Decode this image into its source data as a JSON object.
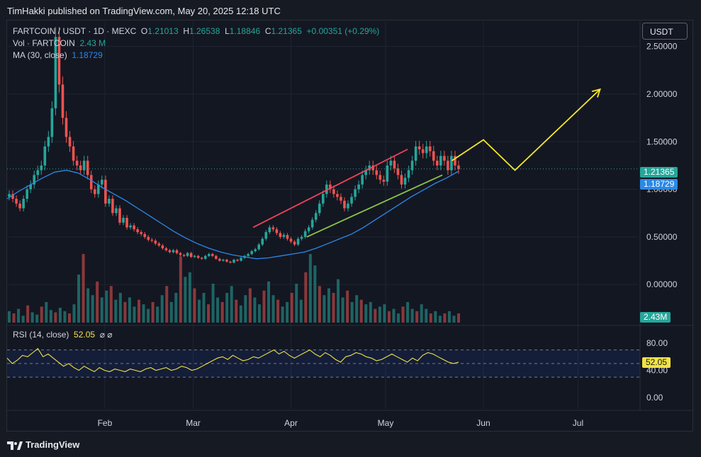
{
  "publisher": "TimHakki published on TradingView.com, May 20, 2025 12:18 UTC",
  "legend": {
    "symbol": "FARTCOIN / USDT · 1D · MEXC",
    "open_label": "O",
    "open": "1.21013",
    "high_label": "H",
    "high": "1.26538",
    "low_label": "L",
    "low": "1.18846",
    "close_label": "C",
    "close": "1.21365",
    "change": "+0.00351 (+0.29%)",
    "vol_label": "Vol · FARTCOIN",
    "vol_value": "2.43 M",
    "ma_label": "MA (30, close)",
    "ma_value": "1.18729"
  },
  "currency_button": "USDT",
  "price_axis": [
    "2.50000",
    "2.00000",
    "1.50000",
    "1.00000",
    "0.50000",
    "0.00000"
  ],
  "price_tags": {
    "last": "1.21365",
    "ma": "1.18729",
    "volume": "2.43M"
  },
  "time_axis": [
    "Feb",
    "Mar",
    "Apr",
    "May",
    "Jun",
    "Jul"
  ],
  "rsi": {
    "label": "RSI (14, close)",
    "value": "52.05",
    "icons": "⌀ ⌀",
    "axis": [
      "80.00",
      "40.00",
      "0.00"
    ]
  },
  "brand": "TradingView",
  "colors": {
    "up": "#26a69a",
    "down": "#ef5350",
    "ma": "#2b89e8",
    "rsi": "#f1e344",
    "projection": "#f5e72a",
    "channel_top": "#f2435a",
    "channel_bottom": "#8bc34a"
  },
  "chart_data": {
    "type": "candlestick",
    "ylim": [
      -0.4,
      2.75
    ],
    "x_range_days": [
      "2025-01-01",
      "2025-07-20"
    ],
    "close_series": [
      0.95,
      0.9,
      0.85,
      0.8,
      0.9,
      1.0,
      1.05,
      1.15,
      1.2,
      1.25,
      1.45,
      1.55,
      1.85,
      2.6,
      2.1,
      1.75,
      1.55,
      1.45,
      1.3,
      1.25,
      1.2,
      1.3,
      1.15,
      1.0,
      0.95,
      1.05,
      1.1,
      0.85,
      0.9,
      0.75,
      0.8,
      0.65,
      0.7,
      0.6,
      0.62,
      0.58,
      0.55,
      0.53,
      0.5,
      0.47,
      0.46,
      0.43,
      0.41,
      0.38,
      0.36,
      0.34,
      0.36,
      0.33,
      0.31,
      0.3,
      0.33,
      0.29,
      0.3,
      0.28,
      0.27,
      0.3,
      0.32,
      0.3,
      0.27,
      0.25,
      0.26,
      0.24,
      0.23,
      0.26,
      0.25,
      0.28,
      0.3,
      0.32,
      0.35,
      0.37,
      0.42,
      0.48,
      0.55,
      0.6,
      0.58,
      0.54,
      0.5,
      0.52,
      0.48,
      0.45,
      0.42,
      0.48,
      0.5,
      0.56,
      0.6,
      0.68,
      0.75,
      0.85,
      0.95,
      1.05,
      1.0,
      0.95,
      0.92,
      0.88,
      0.8,
      0.85,
      0.92,
      1.0,
      1.05,
      1.15,
      1.2,
      1.25,
      1.2,
      1.15,
      1.1,
      1.08,
      1.25,
      1.3,
      1.22,
      1.15,
      1.05,
      1.12,
      1.2,
      1.3,
      1.45,
      1.42,
      1.38,
      1.45,
      1.4,
      1.3,
      1.25,
      1.35,
      1.3,
      1.2,
      1.35,
      1.25,
      1.21
    ],
    "ma30": [
      0.9,
      0.98,
      1.05,
      1.12,
      1.18,
      1.2,
      1.17,
      1.1,
      1.02,
      0.95,
      0.88,
      0.8,
      0.72,
      0.64,
      0.56,
      0.49,
      0.43,
      0.38,
      0.34,
      0.31,
      0.29,
      0.27,
      0.28,
      0.3,
      0.32,
      0.34,
      0.38,
      0.43,
      0.48,
      0.53,
      0.6,
      0.68,
      0.76,
      0.84,
      0.92,
      0.99,
      1.06,
      1.12,
      1.19
    ],
    "rsi_series": [
      58,
      50,
      55,
      62,
      60,
      66,
      72,
      60,
      64,
      58,
      52,
      46,
      50,
      44,
      40,
      46,
      42,
      38,
      44,
      40,
      38,
      42,
      40,
      38,
      42,
      40,
      38,
      42,
      44,
      40,
      42,
      44,
      40,
      42,
      46,
      44,
      40,
      42,
      46,
      50,
      54,
      58,
      60,
      56,
      62,
      58,
      54,
      56,
      60,
      58,
      62,
      66,
      70,
      64,
      68,
      62,
      58,
      62,
      66,
      70,
      64,
      60,
      66,
      62,
      56,
      52,
      60,
      62,
      66,
      64,
      60,
      58,
      54,
      56,
      60,
      64,
      60,
      56,
      52,
      58,
      54,
      62,
      66,
      64,
      60,
      56,
      52,
      50,
      52
    ],
    "volume_m": [
      1.0,
      0.8,
      1.2,
      0.6,
      1.5,
      0.9,
      0.7,
      1.4,
      1.8,
      1.1,
      0.9,
      1.3,
      1.0,
      0.8,
      1.6,
      4.2,
      6.0,
      3.0,
      2.4,
      3.6,
      2.2,
      2.8,
      3.2,
      2.0,
      2.6,
      1.8,
      2.2,
      1.4,
      2.0,
      1.6,
      1.2,
      1.8,
      1.4,
      2.4,
      3.2,
      1.8,
      2.6,
      5.8,
      4.0,
      4.4,
      3.0,
      2.0,
      2.6,
      1.6,
      3.4,
      2.2,
      1.8,
      2.6,
      3.2,
      2.0,
      1.5,
      2.4,
      3.0,
      2.2,
      1.6,
      2.8,
      3.6,
      2.4,
      2.0,
      1.4,
      1.8,
      2.6,
      3.4,
      2.0,
      4.4,
      6.0,
      5.0,
      3.2,
      2.4,
      3.0,
      2.6,
      3.8,
      2.2,
      2.8,
      1.8,
      2.4,
      2.0,
      1.6,
      1.8,
      1.2,
      1.4,
      1.6,
      1.0,
      1.2,
      0.8,
      1.4,
      1.8,
      1.2,
      1.0,
      1.6,
      1.2,
      0.8,
      1.0,
      0.6,
      0.8,
      1.0,
      0.6,
      0.8
    ],
    "drawings": {
      "channel_upper": [
        [
          "2025-03-20",
          0.6
        ],
        [
          "2025-05-08",
          1.42
        ]
      ],
      "channel_lower": [
        [
          "2025-04-06",
          0.5
        ],
        [
          "2025-05-19",
          1.15
        ]
      ],
      "projection": [
        [
          "2025-05-22",
          1.3
        ],
        [
          "2025-06-01",
          1.52
        ],
        [
          "2025-06-11",
          1.2
        ],
        [
          "2025-07-08",
          2.05
        ]
      ]
    }
  }
}
